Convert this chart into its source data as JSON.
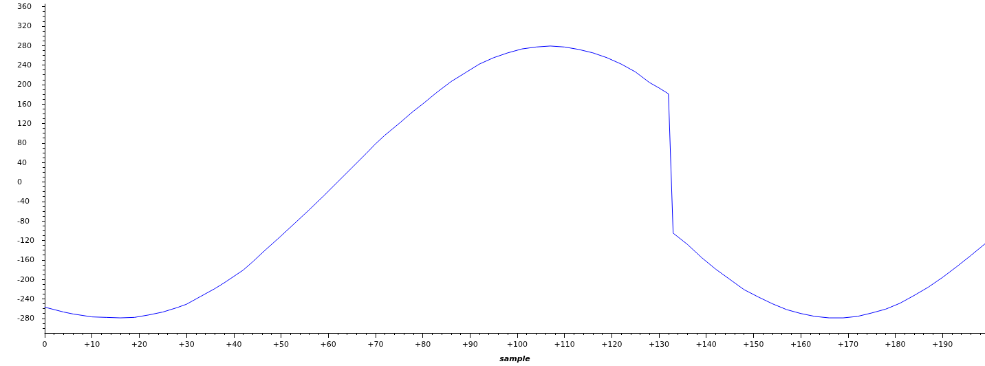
{
  "chart_data": {
    "type": "line",
    "xlabel": "sample",
    "grid": false,
    "x": [
      0,
      2,
      4,
      6,
      8,
      10,
      13,
      16,
      19,
      22,
      25,
      28,
      30,
      33,
      36,
      38,
      42,
      44,
      47,
      50,
      53,
      56,
      59,
      62,
      65,
      68,
      70,
      72,
      75,
      78,
      80,
      83,
      86,
      89,
      92,
      95,
      98,
      101,
      104,
      107,
      110,
      113,
      116,
      119,
      122,
      125,
      128,
      130,
      132,
      133,
      136,
      139,
      142,
      145,
      148,
      151,
      154,
      157,
      160,
      163,
      166,
      169,
      172,
      175,
      178,
      181,
      184,
      187,
      190,
      193,
      196,
      199
    ],
    "series": [
      {
        "color": "#0000ff",
        "values": [
          -257,
          -262,
          -267,
          -271,
          -274,
          -277,
          -278,
          -279,
          -278,
          -273,
          -267,
          -258,
          -251,
          -235,
          -219,
          -207,
          -181,
          -164,
          -137,
          -111,
          -84,
          -57,
          -29,
          0,
          29,
          58,
          78,
          96,
          120,
          145,
          160,
          184,
          206,
          224,
          242,
          255,
          265,
          273,
          277,
          279,
          277,
          272,
          265,
          255,
          242,
          226,
          204,
          193,
          181,
          -105,
          -128,
          -155,
          -179,
          -200,
          -221,
          -236,
          -250,
          -262,
          -270,
          -276,
          -279,
          -279,
          -276,
          -269,
          -261,
          -249,
          -233,
          -216,
          -196,
          -174,
          -151,
          -127
        ]
      }
    ],
    "xlim": [
      0,
      199
    ],
    "ylim": [
      -310,
      365
    ],
    "xticks": [
      0,
      {
        "value": 2,
        "label": null
      },
      {
        "value": 4,
        "label": null
      },
      {
        "value": 6,
        "label": null
      },
      {
        "value": 8,
        "label": null
      },
      {
        "value": 10,
        "label": "+10"
      },
      {
        "value": 12,
        "label": null
      },
      {
        "value": 14,
        "label": null
      },
      {
        "value": 16,
        "label": null
      },
      {
        "value": 18,
        "label": null
      },
      {
        "value": 20,
        "label": "+20"
      },
      {
        "value": 22,
        "label": null
      },
      {
        "value": 24,
        "label": null
      },
      {
        "value": 26,
        "label": null
      },
      {
        "value": 28,
        "label": null
      },
      {
        "value": 30,
        "label": "+30"
      },
      {
        "value": 32,
        "label": null
      },
      {
        "value": 34,
        "label": null
      },
      {
        "value": 36,
        "label": null
      },
      {
        "value": 38,
        "label": null
      },
      {
        "value": 40,
        "label": "+40"
      },
      {
        "value": 42,
        "label": null
      },
      {
        "value": 44,
        "label": null
      },
      {
        "value": 46,
        "label": null
      },
      {
        "value": 48,
        "label": null
      },
      {
        "value": 50,
        "label": "+50"
      },
      {
        "value": 52,
        "label": null
      },
      {
        "value": 54,
        "label": null
      },
      {
        "value": 56,
        "label": null
      },
      {
        "value": 58,
        "label": null
      },
      {
        "value": 60,
        "label": "+60"
      },
      {
        "value": 62,
        "label": null
      },
      {
        "value": 64,
        "label": null
      },
      {
        "value": 66,
        "label": null
      },
      {
        "value": 68,
        "label": null
      },
      {
        "value": 70,
        "label": "+70"
      },
      {
        "value": 72,
        "label": null
      },
      {
        "value": 74,
        "label": null
      },
      {
        "value": 76,
        "label": null
      },
      {
        "value": 78,
        "label": null
      },
      {
        "value": 80,
        "label": "+80"
      },
      {
        "value": 82,
        "label": null
      },
      {
        "value": 84,
        "label": null
      },
      {
        "value": 86,
        "label": null
      },
      {
        "value": 88,
        "label": null
      },
      {
        "value": 90,
        "label": "+90"
      },
      {
        "value": 92,
        "label": null
      },
      {
        "value": 94,
        "label": null
      },
      {
        "value": 96,
        "label": null
      },
      {
        "value": 98,
        "label": null
      },
      {
        "value": 100,
        "label": "+100"
      },
      {
        "value": 102,
        "label": null
      },
      {
        "value": 104,
        "label": null
      },
      {
        "value": 106,
        "label": null
      },
      {
        "value": 108,
        "label": null
      },
      {
        "value": 110,
        "label": "+110"
      },
      {
        "value": 112,
        "label": null
      },
      {
        "value": 114,
        "label": null
      },
      {
        "value": 116,
        "label": null
      },
      {
        "value": 118,
        "label": null
      },
      {
        "value": 120,
        "label": "+120"
      },
      {
        "value": 122,
        "label": null
      },
      {
        "value": 124,
        "label": null
      },
      {
        "value": 126,
        "label": null
      },
      {
        "value": 128,
        "label": null
      },
      {
        "value": 130,
        "label": "+130"
      },
      {
        "value": 132,
        "label": null
      },
      {
        "value": 134,
        "label": null
      },
      {
        "value": 136,
        "label": null
      },
      {
        "value": 138,
        "label": null
      },
      {
        "value": 140,
        "label": "+140"
      },
      {
        "value": 142,
        "label": null
      },
      {
        "value": 144,
        "label": null
      },
      {
        "value": 146,
        "label": null
      },
      {
        "value": 148,
        "label": null
      },
      {
        "value": 150,
        "label": "+150"
      },
      {
        "value": 152,
        "label": null
      },
      {
        "value": 154,
        "label": null
      },
      {
        "value": 156,
        "label": null
      },
      {
        "value": 158,
        "label": null
      },
      {
        "value": 160,
        "label": "+160"
      },
      {
        "value": 162,
        "label": null
      },
      {
        "value": 164,
        "label": null
      },
      {
        "value": 166,
        "label": null
      },
      {
        "value": 168,
        "label": null
      },
      {
        "value": 170,
        "label": "+170"
      },
      {
        "value": 172,
        "label": null
      },
      {
        "value": 174,
        "label": null
      },
      {
        "value": 176,
        "label": null
      },
      {
        "value": 178,
        "label": null
      },
      {
        "value": 180,
        "label": "+180"
      },
      {
        "value": 182,
        "label": null
      },
      {
        "value": 184,
        "label": null
      },
      {
        "value": 186,
        "label": null
      },
      {
        "value": 188,
        "label": null
      },
      {
        "value": 190,
        "label": "+190"
      },
      {
        "value": 192,
        "label": null
      },
      {
        "value": 194,
        "label": null
      },
      {
        "value": 196,
        "label": null
      },
      {
        "value": 198,
        "label": null
      }
    ],
    "yticks": [
      {
        "value": -300,
        "label": null
      },
      {
        "value": -290,
        "label": null
      },
      -280,
      {
        "value": -270,
        "label": null
      },
      {
        "value": -260,
        "label": null
      },
      {
        "value": -250,
        "label": null
      },
      -240,
      {
        "value": -230,
        "label": null
      },
      {
        "value": -220,
        "label": null
      },
      {
        "value": -210,
        "label": null
      },
      -200,
      {
        "value": -190,
        "label": null
      },
      {
        "value": -180,
        "label": null
      },
      {
        "value": -170,
        "label": null
      },
      -160,
      {
        "value": -150,
        "label": null
      },
      {
        "value": -140,
        "label": null
      },
      {
        "value": -130,
        "label": null
      },
      -120,
      {
        "value": -110,
        "label": null
      },
      {
        "value": -100,
        "label": null
      },
      {
        "value": -90,
        "label": null
      },
      -80,
      {
        "value": -70,
        "label": null
      },
      {
        "value": -60,
        "label": null
      },
      {
        "value": -50,
        "label": null
      },
      -40,
      {
        "value": -30,
        "label": null
      },
      {
        "value": -20,
        "label": null
      },
      {
        "value": -10,
        "label": null
      },
      0,
      {
        "value": 10,
        "label": null
      },
      {
        "value": 20,
        "label": null
      },
      {
        "value": 30,
        "label": null
      },
      40,
      {
        "value": 50,
        "label": null
      },
      {
        "value": 60,
        "label": null
      },
      {
        "value": 70,
        "label": null
      },
      80,
      {
        "value": 90,
        "label": null
      },
      {
        "value": 100,
        "label": null
      },
      {
        "value": 110,
        "label": null
      },
      120,
      {
        "value": 130,
        "label": null
      },
      {
        "value": 140,
        "label": null
      },
      {
        "value": 150,
        "label": null
      },
      160,
      {
        "value": 170,
        "label": null
      },
      {
        "value": 180,
        "label": null
      },
      {
        "value": 190,
        "label": null
      },
      200,
      {
        "value": 210,
        "label": null
      },
      {
        "value": 220,
        "label": null
      },
      {
        "value": 230,
        "label": null
      },
      240,
      {
        "value": 250,
        "label": null
      },
      {
        "value": 260,
        "label": null
      },
      {
        "value": 270,
        "label": null
      },
      280,
      {
        "value": 290,
        "label": null
      },
      {
        "value": 300,
        "label": null
      },
      {
        "value": 310,
        "label": null
      },
      320,
      {
        "value": 330,
        "label": null
      },
      {
        "value": 340,
        "label": null
      },
      {
        "value": 350,
        "label": null
      },
      360
    ]
  }
}
